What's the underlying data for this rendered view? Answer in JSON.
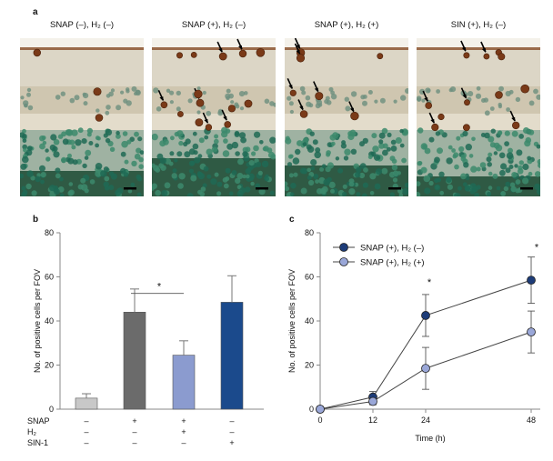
{
  "figure": {
    "panel_a_letter": "a",
    "panel_b_letter": "b",
    "panel_c_letter": "c",
    "micrographs": [
      {
        "title": "SNAP (–), H₂ (–)",
        "brown_cells": 3
      },
      {
        "title": "SNAP (+), H₂ (–)",
        "brown_cells": 14
      },
      {
        "title": "SNAP (+), H₂ (+)",
        "brown_cells": 7
      },
      {
        "title": "SIN (+), H₂ (–)",
        "brown_cells": 12
      }
    ]
  },
  "colors": {
    "bar_control": "#c8c8c8",
    "bar_snap": "#6b6b6b",
    "bar_snap_h2": "#8b9bcf",
    "bar_sin": "#1b4a8c",
    "line_no_h2": "#1d3c78",
    "line_h2": "#9aa7d8"
  },
  "chart_data": [
    {
      "type": "bar",
      "panel": "b",
      "ylabel": "No. of positive cells per FOV",
      "ylim": [
        0,
        80
      ],
      "yticks": [
        "0",
        "20",
        "40",
        "60",
        "80"
      ],
      "categories": [
        "Control",
        "SNAP",
        "SNAP+H2",
        "SIN-1"
      ],
      "values": [
        5,
        44,
        24.5,
        48.5
      ],
      "errors": [
        2,
        10.5,
        6.5,
        12
      ],
      "significance": {
        "label": "*",
        "between": [
          1,
          2
        ]
      },
      "treatment_rows": [
        {
          "label": "SNAP",
          "signs": [
            "–",
            "+",
            "+",
            "–"
          ]
        },
        {
          "label": "H₂",
          "signs": [
            "–",
            "–",
            "+",
            "–"
          ]
        },
        {
          "label": "SIN-1",
          "signs": [
            "–",
            "–",
            "–",
            "+"
          ]
        }
      ]
    },
    {
      "type": "line",
      "panel": "c",
      "xlabel": "Time (h)",
      "ylabel": "No. of positive cells per FOV",
      "x": [
        0,
        12,
        24,
        48
      ],
      "xticks": [
        "0",
        "12",
        "24",
        "48"
      ],
      "ylim": [
        0,
        80
      ],
      "yticks": [
        "0",
        "20",
        "40",
        "60",
        "80"
      ],
      "series": [
        {
          "name": "SNAP (+), H₂ (–)",
          "values": [
            0,
            5.5,
            42.5,
            58.5
          ],
          "errors": [
            0,
            2.5,
            9.5,
            10.5
          ]
        },
        {
          "name": "SNAP (+), H₂ (+)",
          "values": [
            0,
            3.5,
            18.5,
            35
          ],
          "errors": [
            0,
            1.5,
            9.5,
            9.5
          ]
        }
      ],
      "significance_labels": [
        {
          "x": 24,
          "label": "*"
        },
        {
          "x": 48,
          "label": "*"
        }
      ]
    }
  ]
}
